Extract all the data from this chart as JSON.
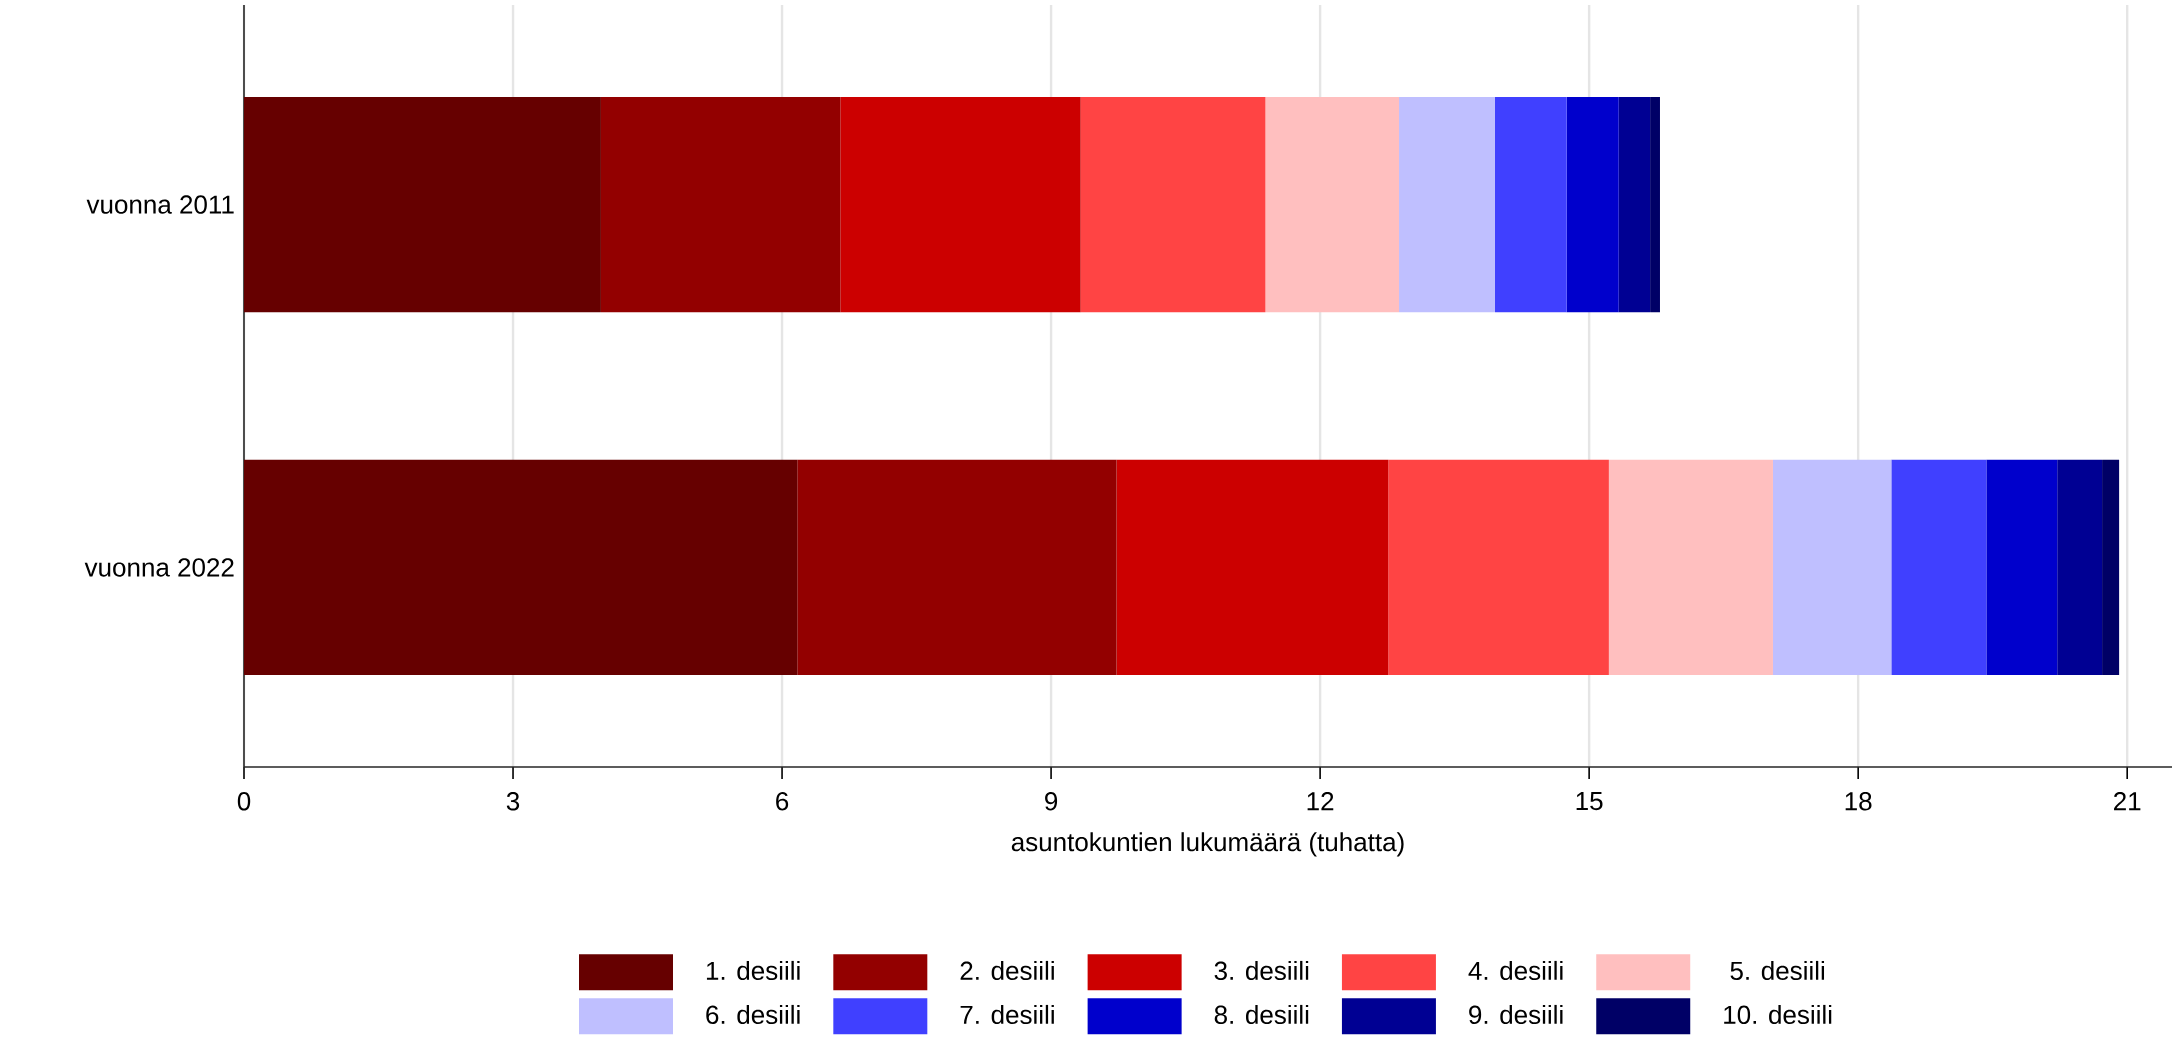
{
  "chart_data": {
    "type": "bar",
    "orientation": "horizontal",
    "stacked": true,
    "categories": [
      "vuonna 2011",
      "vuonna 2022"
    ],
    "xlabel": "asuntokuntien lukumäärä (tuhatta)",
    "xlim": [
      0,
      21.5
    ],
    "xticks": [
      0,
      3,
      6,
      9,
      12,
      15,
      18,
      21
    ],
    "grid": "x",
    "legend": "bottom",
    "series": [
      {
        "name": "1. desiili",
        "color": "#660000",
        "values": [
          3.98,
          6.17
        ]
      },
      {
        "name": "2. desiili",
        "color": "#930000",
        "values": [
          2.67,
          3.56
        ]
      },
      {
        "name": "3. desiili",
        "color": "#cc0000",
        "values": [
          2.68,
          3.03
        ]
      },
      {
        "name": "4. desiili",
        "color": "#ff4444",
        "values": [
          2.06,
          2.46
        ]
      },
      {
        "name": "5. desiili",
        "color": "#ffbfbf",
        "values": [
          1.49,
          1.83
        ]
      },
      {
        "name": "6. desiili",
        "color": "#bfbfff",
        "values": [
          1.07,
          1.32
        ]
      },
      {
        "name": "7. desiili",
        "color": "#4040ff",
        "values": [
          0.8,
          1.06
        ]
      },
      {
        "name": "8. desiili",
        "color": "#0000cc",
        "values": [
          0.58,
          0.79
        ]
      },
      {
        "name": "9. desiili",
        "color": "#000093",
        "values": [
          0.35,
          0.5
        ]
      },
      {
        "name": "10. desiili",
        "color": "#000066",
        "values": [
          0.11,
          0.19
        ]
      }
    ]
  }
}
